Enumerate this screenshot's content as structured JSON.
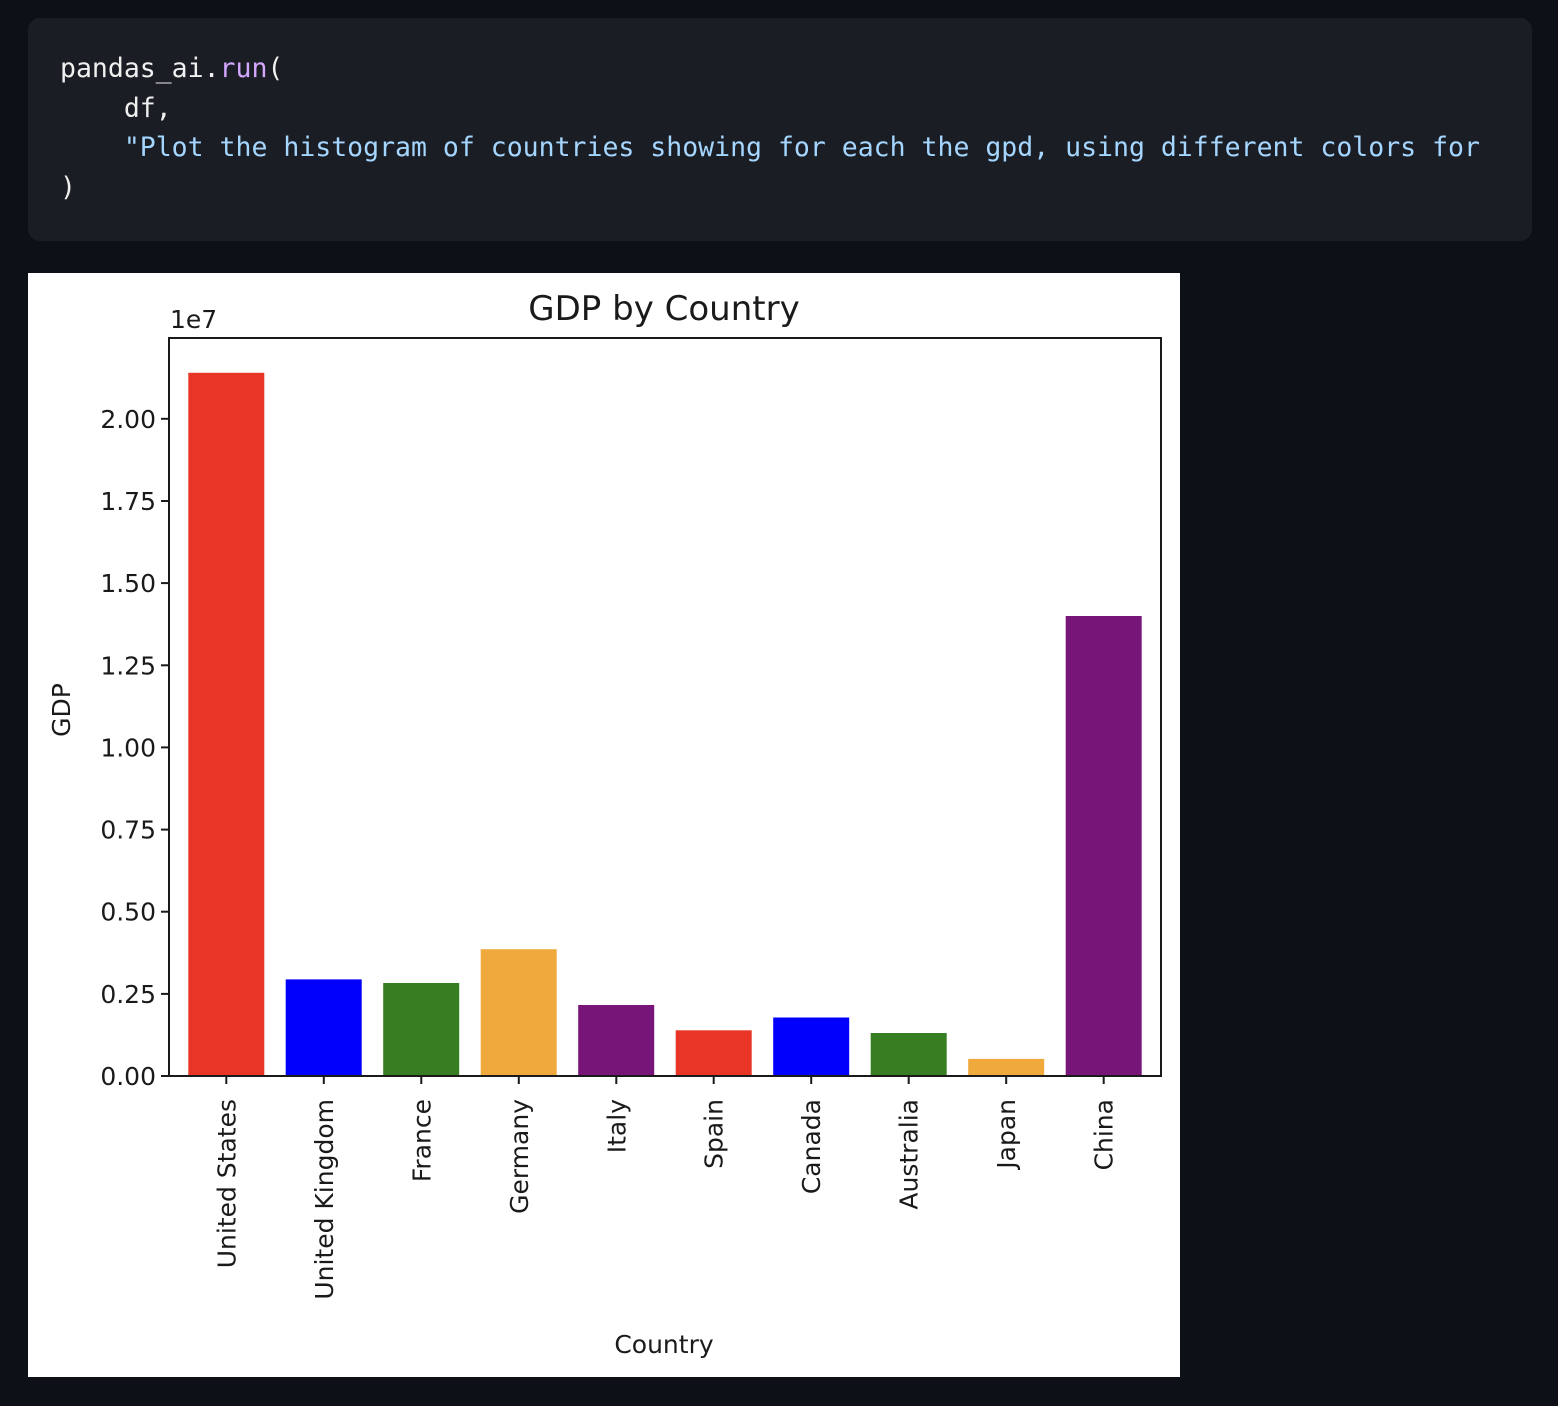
{
  "code": {
    "lines": [
      [
        {
          "t": "pandas_ai.",
          "c": "plain"
        },
        {
          "t": "run",
          "c": "fn"
        },
        {
          "t": "(",
          "c": "plain"
        }
      ],
      [
        {
          "t": "    df,",
          "c": "plain"
        }
      ],
      [
        {
          "t": "    \"Plot the histogram of countries showing for each the gpd, using different colors for",
          "c": "str"
        }
      ],
      [
        {
          "t": ")",
          "c": "plain"
        }
      ]
    ]
  },
  "chart_data": {
    "type": "bar",
    "title": "GDP by Country",
    "xlabel": "Country",
    "ylabel": "GDP",
    "offset_label": "1e7",
    "categories": [
      "United States",
      "United Kingdom",
      "France",
      "Germany",
      "Italy",
      "Spain",
      "Canada",
      "Australia",
      "Japan",
      "China"
    ],
    "values": [
      21400000,
      2940000,
      2830000,
      3860000,
      2160000,
      1390000,
      1780000,
      1310000,
      520000,
      14000000
    ],
    "colors": [
      "#e83525",
      "#0000fc",
      "#377d22",
      "#efa93d",
      "#771579",
      "#e83525",
      "#0000fc",
      "#377d22",
      "#efa93d",
      "#771579"
    ],
    "y_ticks": [
      0,
      0.25,
      0.5,
      0.75,
      1.0,
      1.25,
      1.5,
      1.75,
      2.0
    ],
    "y_tick_labels": [
      "0.00",
      "0.25",
      "0.50",
      "0.75",
      "1.00",
      "1.25",
      "1.50",
      "1.75",
      "2.00"
    ],
    "ylim": [
      0,
      22460000
    ],
    "grid": false,
    "legend": "none"
  }
}
